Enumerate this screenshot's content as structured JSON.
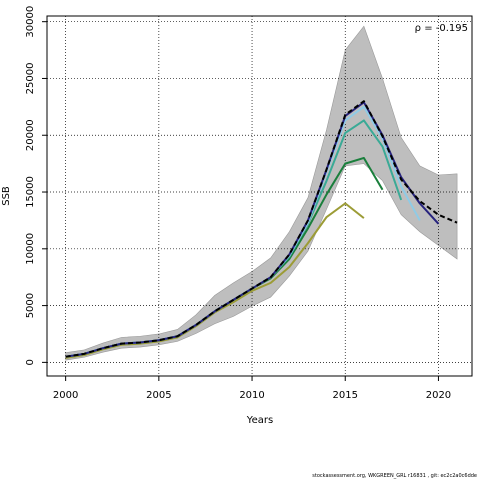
{
  "chart_data": {
    "type": "line",
    "title": "",
    "xlabel": "Years",
    "ylabel": "SSB",
    "annotation": "ρ = -0.195",
    "xlim": [
      1999,
      2021.8
    ],
    "ylim": [
      -1200,
      30500
    ],
    "x_ticks": [
      2000,
      2005,
      2010,
      2015,
      2020
    ],
    "y_ticks": [
      0,
      5000,
      10000,
      15000,
      20000,
      25000,
      30000
    ],
    "grid": true,
    "colors": {
      "band": "#bebebe",
      "navy": "#27237e",
      "lightblue": "#8fcbe6",
      "teal": "#3aaa96",
      "green": "#1a7f3c",
      "olive": "#9c9c36",
      "black": "#000000"
    },
    "band": {
      "x": [
        2000,
        2001,
        2002,
        2003,
        2004,
        2005,
        2006,
        2007,
        2008,
        2009,
        2010,
        2011,
        2012,
        2013,
        2014,
        2015,
        2016,
        2017,
        2018,
        2019,
        2020,
        2021
      ],
      "lower": [
        200,
        450,
        900,
        1250,
        1350,
        1550,
        1850,
        2550,
        3400,
        4050,
        4950,
        5750,
        7600,
        9800,
        13500,
        17300,
        17500,
        16000,
        13000,
        11500,
        10300,
        9100
      ],
      "upper": [
        850,
        1100,
        1700,
        2200,
        2300,
        2500,
        2900,
        4200,
        5900,
        7000,
        8000,
        9200,
        11500,
        14500,
        20500,
        27500,
        29600,
        25000,
        19800,
        17300,
        16500,
        16600
      ]
    },
    "series": [
      {
        "color": "olive",
        "dash": false,
        "x": [
          2000,
          2001,
          2002,
          2003,
          2004,
          2005,
          2006,
          2007,
          2008,
          2009,
          2010,
          2011,
          2012,
          2013,
          2014,
          2015,
          2016
        ],
        "values": [
          400,
          650,
          1150,
          1550,
          1650,
          1850,
          2200,
          3200,
          4400,
          5300,
          6300,
          7000,
          8400,
          10500,
          12800,
          14000,
          12700
        ]
      },
      {
        "color": "green",
        "dash": false,
        "x": [
          2000,
          2001,
          2002,
          2003,
          2004,
          2005,
          2006,
          2007,
          2008,
          2009,
          2010,
          2011,
          2012,
          2013,
          2014,
          2015,
          2016,
          2017
        ],
        "values": [
          500,
          750,
          1250,
          1650,
          1750,
          1950,
          2300,
          3300,
          4500,
          5500,
          6500,
          7400,
          9100,
          11800,
          14800,
          17500,
          18000,
          15200
        ]
      },
      {
        "color": "teal",
        "dash": false,
        "x": [
          2000,
          2001,
          2002,
          2003,
          2004,
          2005,
          2006,
          2007,
          2008,
          2009,
          2010,
          2011,
          2012,
          2013,
          2014,
          2015,
          2016,
          2017,
          2018
        ],
        "values": [
          500,
          750,
          1250,
          1650,
          1750,
          1950,
          2300,
          3300,
          4500,
          5500,
          6500,
          7500,
          9300,
          12200,
          16000,
          20200,
          21300,
          19000,
          14300
        ]
      },
      {
        "color": "lightblue",
        "dash": false,
        "x": [
          2000,
          2001,
          2002,
          2003,
          2004,
          2005,
          2006,
          2007,
          2008,
          2009,
          2010,
          2011,
          2012,
          2013,
          2014,
          2015,
          2016,
          2017,
          2018,
          2019
        ],
        "values": [
          500,
          750,
          1250,
          1650,
          1750,
          1950,
          2300,
          3300,
          4500,
          5500,
          6500,
          7500,
          9400,
          12300,
          16800,
          21300,
          22500,
          19700,
          15500,
          12500
        ]
      },
      {
        "color": "navy",
        "dash": false,
        "x": [
          2000,
          2001,
          2002,
          2003,
          2004,
          2005,
          2006,
          2007,
          2008,
          2009,
          2010,
          2011,
          2012,
          2013,
          2014,
          2015,
          2016,
          2017,
          2018,
          2019,
          2020
        ],
        "values": [
          500,
          750,
          1250,
          1650,
          1750,
          1950,
          2300,
          3300,
          4500,
          5500,
          6500,
          7500,
          9500,
          12500,
          17000,
          21700,
          22900,
          20000,
          16300,
          14000,
          12200
        ]
      },
      {
        "color": "black",
        "dash": true,
        "x": [
          2000,
          2001,
          2002,
          2003,
          2004,
          2005,
          2006,
          2007,
          2008,
          2009,
          2010,
          2011,
          2012,
          2013,
          2014,
          2015,
          2016,
          2017,
          2018,
          2019,
          2020,
          2021
        ],
        "values": [
          500,
          750,
          1250,
          1650,
          1750,
          1950,
          2300,
          3300,
          4500,
          5500,
          6500,
          7500,
          9500,
          12500,
          17000,
          21800,
          23000,
          19900,
          16100,
          14200,
          13000,
          12300
        ]
      }
    ]
  },
  "footer": "stockassessment.org, WKGREEN_GRL r16831 , git: ec2c2a0c6dde"
}
